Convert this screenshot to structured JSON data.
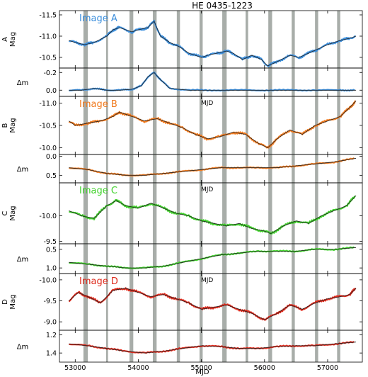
{
  "figure_title": "HE 0435-1223",
  "x_tick_labels": [
    "53000",
    "54000",
    "55000",
    "56000",
    "57000"
  ],
  "xlabel": "MJD",
  "colors": {
    "A": "#3d8fdc",
    "B": "#f07a1e",
    "C": "#3fd12a",
    "D": "#de2a1c",
    "gap": "#a8ada9",
    "model": "#222222"
  },
  "chart_data": [
    {
      "type": "line",
      "panel": "A",
      "label": "Image A",
      "ylabel_top": "A",
      "ylabel": "Mag",
      "xlim": [
        52750,
        57550
      ],
      "ylim": [
        -10.25,
        -11.6
      ],
      "inverted": true,
      "yticks": [
        "-11.5",
        "-11.0",
        "-10.5"
      ],
      "x": [
        52900,
        53000,
        53150,
        53300,
        53500,
        53600,
        53700,
        53900,
        54000,
        54150,
        54250,
        54350,
        54500,
        54650,
        54800,
        55000,
        55100,
        55250,
        55400,
        55500,
        55650,
        55800,
        55950,
        56050,
        56200,
        56400,
        56550,
        56700,
        56850,
        57000,
        57200,
        57350,
        57450
      ],
      "values": [
        -10.9,
        -10.85,
        -10.8,
        -10.85,
        -11.0,
        -11.15,
        -11.2,
        -11.1,
        -11.15,
        -11.2,
        -11.35,
        -11.0,
        -10.85,
        -10.75,
        -10.6,
        -10.5,
        -10.55,
        -10.6,
        -10.65,
        -10.6,
        -10.45,
        -10.55,
        -10.45,
        -10.3,
        -10.4,
        -10.55,
        -10.5,
        -10.6,
        -10.7,
        -10.8,
        -10.9,
        -10.95,
        -11.0
      ]
    },
    {
      "type": "line",
      "panel": "dA",
      "ylabel": "Δm",
      "xlim": [
        52750,
        57550
      ],
      "ylim": [
        0.07,
        -0.25
      ],
      "inverted": true,
      "yticks": [
        "-0.2",
        "0.0"
      ],
      "x": [
        52900,
        53100,
        53300,
        53500,
        53700,
        53900,
        54050,
        54150,
        54250,
        54350,
        54500,
        54800,
        55200,
        55600,
        56000,
        56400,
        56800,
        57200,
        57450
      ],
      "values": [
        0.0,
        0.0,
        -0.02,
        0.0,
        0.0,
        -0.01,
        -0.05,
        -0.15,
        -0.2,
        -0.12,
        -0.02,
        0.0,
        0.0,
        0.0,
        0.0,
        0.0,
        0.0,
        0.0,
        0.0
      ]
    },
    {
      "type": "line",
      "panel": "B",
      "label": "Image B",
      "ylabel_top": "B",
      "ylabel": "Mag",
      "xlim": [
        52750,
        57550
      ],
      "ylim": [
        -9.85,
        -11.15
      ],
      "inverted": true,
      "yticks": [
        "-11.0",
        "-10.5",
        "-10.0"
      ],
      "x": [
        52900,
        53000,
        53200,
        53400,
        53600,
        53700,
        53900,
        54100,
        54300,
        54500,
        54700,
        54900,
        55100,
        55300,
        55500,
        55700,
        55900,
        56050,
        56200,
        56400,
        56600,
        56800,
        57000,
        57200,
        57350,
        57450
      ],
      "values": [
        -10.6,
        -10.5,
        -10.55,
        -10.6,
        -10.7,
        -10.8,
        -10.7,
        -10.6,
        -10.65,
        -10.55,
        -10.45,
        -10.3,
        -10.2,
        -10.25,
        -10.35,
        -10.3,
        -10.1,
        -10.0,
        -10.2,
        -10.4,
        -10.3,
        -10.5,
        -10.6,
        -10.7,
        -10.9,
        -11.05
      ]
    },
    {
      "type": "line",
      "panel": "dB",
      "ylabel": "Δm",
      "xlim": [
        52750,
        57550
      ],
      "ylim": [
        0.7,
        -0.05
      ],
      "inverted": true,
      "yticks": [
        "0.0",
        "0.5"
      ],
      "x": [
        52900,
        53200,
        53500,
        53800,
        54100,
        54400,
        54700,
        55000,
        55300,
        55600,
        55900,
        56200,
        56500,
        56800,
        57100,
        57450
      ],
      "values": [
        0.3,
        0.35,
        0.45,
        0.5,
        0.5,
        0.45,
        0.4,
        0.35,
        0.3,
        0.3,
        0.3,
        0.3,
        0.25,
        0.2,
        0.15,
        0.05
      ]
    },
    {
      "type": "line",
      "panel": "C",
      "label": "Image C",
      "ylabel_top": "C",
      "ylabel": "Mag",
      "xlim": [
        52750,
        57550
      ],
      "ylim": [
        -9.45,
        -10.65
      ],
      "inverted": true,
      "yticks": [
        "-10.0",
        "-9.5"
      ],
      "x": [
        52900,
        53100,
        53300,
        53500,
        53650,
        53800,
        54000,
        54200,
        54400,
        54600,
        54800,
        55000,
        55200,
        55400,
        55600,
        55800,
        56000,
        56100,
        56300,
        56500,
        56700,
        56900,
        57100,
        57300,
        57450
      ],
      "values": [
        -10.1,
        -10.0,
        -9.95,
        -10.2,
        -10.3,
        -10.2,
        -10.15,
        -10.25,
        -10.15,
        -10.05,
        -10.0,
        -9.9,
        -9.85,
        -9.8,
        -9.85,
        -9.75,
        -9.7,
        -9.65,
        -9.8,
        -9.9,
        -9.85,
        -10.0,
        -10.1,
        -10.2,
        -10.4
      ]
    },
    {
      "type": "line",
      "panel": "dC",
      "ylabel": "Δm",
      "xlim": [
        52750,
        57550
      ],
      "ylim": [
        1.15,
        0.35
      ],
      "inverted": true,
      "yticks": [
        "0.5",
        "1.0"
      ],
      "x": [
        52900,
        53200,
        53500,
        53800,
        54100,
        54400,
        54700,
        55000,
        55300,
        55600,
        55900,
        56200,
        56500,
        56800,
        57100,
        57450
      ],
      "values": [
        0.85,
        0.9,
        0.95,
        1.0,
        1.0,
        0.95,
        0.85,
        0.75,
        0.65,
        0.6,
        0.55,
        0.55,
        0.55,
        0.5,
        0.5,
        0.45
      ]
    },
    {
      "type": "line",
      "panel": "D",
      "label": "Image D",
      "ylabel_top": "D",
      "ylabel": "Mag",
      "xlim": [
        52750,
        57550
      ],
      "ylim": [
        -8.8,
        -10.15
      ],
      "inverted": true,
      "yticks": [
        "-10.0",
        "-9.5",
        "-9.0"
      ],
      "x": [
        52900,
        53050,
        53200,
        53400,
        53600,
        53800,
        54000,
        54200,
        54400,
        54600,
        54800,
        55000,
        55200,
        55400,
        55600,
        55800,
        56000,
        56200,
        56400,
        56600,
        56800,
        57000,
        57200,
        57350,
        57450
      ],
      "values": [
        -9.5,
        -9.7,
        -9.6,
        -9.45,
        -9.75,
        -9.8,
        -9.7,
        -9.6,
        -9.65,
        -9.55,
        -9.45,
        -9.3,
        -9.35,
        -9.4,
        -9.3,
        -9.2,
        -9.05,
        -9.2,
        -9.4,
        -9.3,
        -9.45,
        -9.55,
        -9.6,
        -9.65,
        -9.8
      ]
    },
    {
      "type": "line",
      "panel": "dD",
      "ylabel": "Δm",
      "xlim": [
        52750,
        57550
      ],
      "ylim": [
        1.5,
        1.15
      ],
      "inverted": true,
      "yticks": [
        "1.2",
        "1.4"
      ],
      "x": [
        52900,
        53200,
        53500,
        53800,
        54100,
        54400,
        54700,
        55000,
        55300,
        55600,
        55900,
        56200,
        56500,
        56800,
        57100,
        57450
      ],
      "values": [
        1.3,
        1.32,
        1.35,
        1.38,
        1.4,
        1.38,
        1.35,
        1.32,
        1.33,
        1.35,
        1.35,
        1.33,
        1.32,
        1.32,
        1.3,
        1.28
      ]
    }
  ],
  "season_gaps": [
    [
      53130,
      53200
    ],
    [
      53490,
      53520
    ],
    [
      53860,
      53920
    ],
    [
      54230,
      54290
    ],
    [
      54610,
      54660
    ],
    [
      54970,
      55020
    ],
    [
      55330,
      55400
    ],
    [
      55700,
      55740
    ],
    [
      56060,
      56120
    ],
    [
      56430,
      56480
    ],
    [
      56800,
      56850
    ],
    [
      57150,
      57200
    ]
  ]
}
